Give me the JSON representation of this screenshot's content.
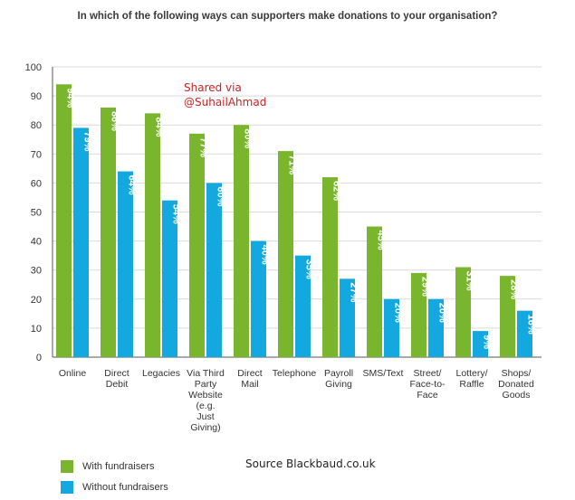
{
  "title": "In which of the following ways can supporters make donations to your organisation?",
  "watermark": {
    "line1": "Shared via",
    "line2": "@SuhailAhmad"
  },
  "source": "Source Blackbaud.co.uk",
  "colors": {
    "with": "#7ab52e",
    "without": "#14a8e0",
    "grid": "#d9d9d9",
    "axis": "#555555"
  },
  "chart_data": {
    "type": "bar",
    "title": "In which of the following ways can supporters make donations to your organisation?",
    "categories": [
      [
        "Online"
      ],
      [
        "Direct",
        "Debit"
      ],
      [
        "Legacies"
      ],
      [
        "Via Third",
        "Party",
        "Website",
        "(e.g.",
        "Just",
        "Giving)"
      ],
      [
        "Direct",
        "Mail"
      ],
      [
        "Telephone"
      ],
      [
        "Payroll",
        "Giving"
      ],
      [
        "SMS/Text"
      ],
      [
        "Street/",
        "Face-to-",
        "Face"
      ],
      [
        "Lottery/",
        "Raffle"
      ],
      [
        "Shops/",
        "Donated",
        "Goods"
      ]
    ],
    "series": [
      {
        "name": "With fundraisers",
        "values": [
          94,
          86,
          84,
          77,
          80,
          71,
          62,
          45,
          29,
          31,
          28
        ]
      },
      {
        "name": "Without fundraisers",
        "values": [
          79,
          64,
          54,
          60,
          40,
          35,
          27,
          20,
          20,
          9,
          16
        ]
      }
    ],
    "ylim": [
      0,
      100
    ],
    "yticks": [
      0,
      10,
      20,
      30,
      40,
      50,
      60,
      70,
      80,
      90,
      100
    ],
    "grid": true,
    "legend": "bottom-left",
    "value_format": "{v}%"
  }
}
